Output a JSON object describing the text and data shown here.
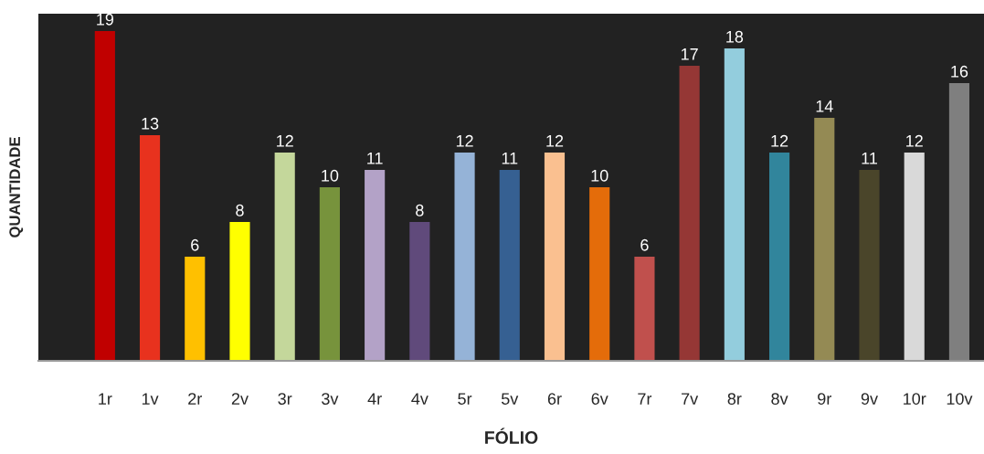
{
  "chart_data": {
    "type": "bar",
    "xlabel": "FÓLIO",
    "ylabel": "QUANTIDADE",
    "categories": [
      "1r",
      "1v",
      "2r",
      "2v",
      "3r",
      "3v",
      "4r",
      "4v",
      "5r",
      "5v",
      "6r",
      "6v",
      "7r",
      "7v",
      "8r",
      "8v",
      "9r",
      "9v",
      "10r",
      "10v"
    ],
    "values": [
      19,
      13,
      6,
      8,
      12,
      10,
      11,
      8,
      12,
      11,
      12,
      10,
      6,
      17,
      18,
      12,
      14,
      11,
      12,
      16
    ],
    "colors": [
      "#c00000",
      "#e8321e",
      "#ffc000",
      "#ffff00",
      "#c4d79b",
      "#77933c",
      "#b3a2c7",
      "#604a7b",
      "#95b3d7",
      "#366092",
      "#fac090",
      "#e46c0a",
      "#c0504d",
      "#953735",
      "#93cddd",
      "#31859c",
      "#948a54",
      "#4a452a",
      "#d9d9d9",
      "#7f7f7f"
    ],
    "ylim": [
      0,
      20
    ],
    "tick_labels": "x",
    "data_labels": true,
    "grid": false,
    "legend": false
  }
}
